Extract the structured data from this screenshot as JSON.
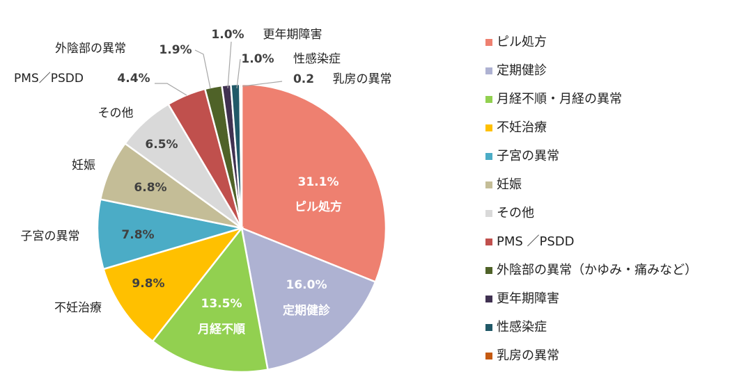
{
  "chart_data": {
    "type": "pie",
    "categories": [
      "ピル処方",
      "定期健診",
      "月経不順・月経の異常",
      "不妊治療",
      "子宮の異常",
      "妊娠",
      "その他",
      "PMS ／PSDD",
      "外陰部の異常（かゆみ・痛みなど）",
      "更年期障害",
      "性感染症",
      "乳房の異常"
    ],
    "values": [
      31.1,
      16.0,
      13.5,
      9.8,
      7.8,
      6.8,
      6.5,
      4.4,
      1.9,
      1.0,
      1.0,
      0.2
    ],
    "value_labels": [
      "31.1%",
      "16.0%",
      "13.5%",
      "9.8%",
      "7.8%",
      "6.8%",
      "6.5%",
      "4.4%",
      "1.9%",
      "1.0%",
      "1.0%",
      "0.2"
    ],
    "slice_labels": [
      "ピル処方",
      "定期健診",
      "月経不順",
      "不妊治療",
      "子宮の異常",
      "妊娠",
      "その他",
      "PMS／PSDD",
      "外陰部の異常",
      "更年期障害",
      "性感染症",
      "乳房の異常"
    ],
    "colors": [
      "#ee8070",
      "#aeb2d2",
      "#92d050",
      "#ffc000",
      "#4bacc6",
      "#c4bd97",
      "#d9d9d9",
      "#c0504d",
      "#4f6228",
      "#403151",
      "#215968",
      "#c55a11"
    ],
    "legend": "right"
  }
}
